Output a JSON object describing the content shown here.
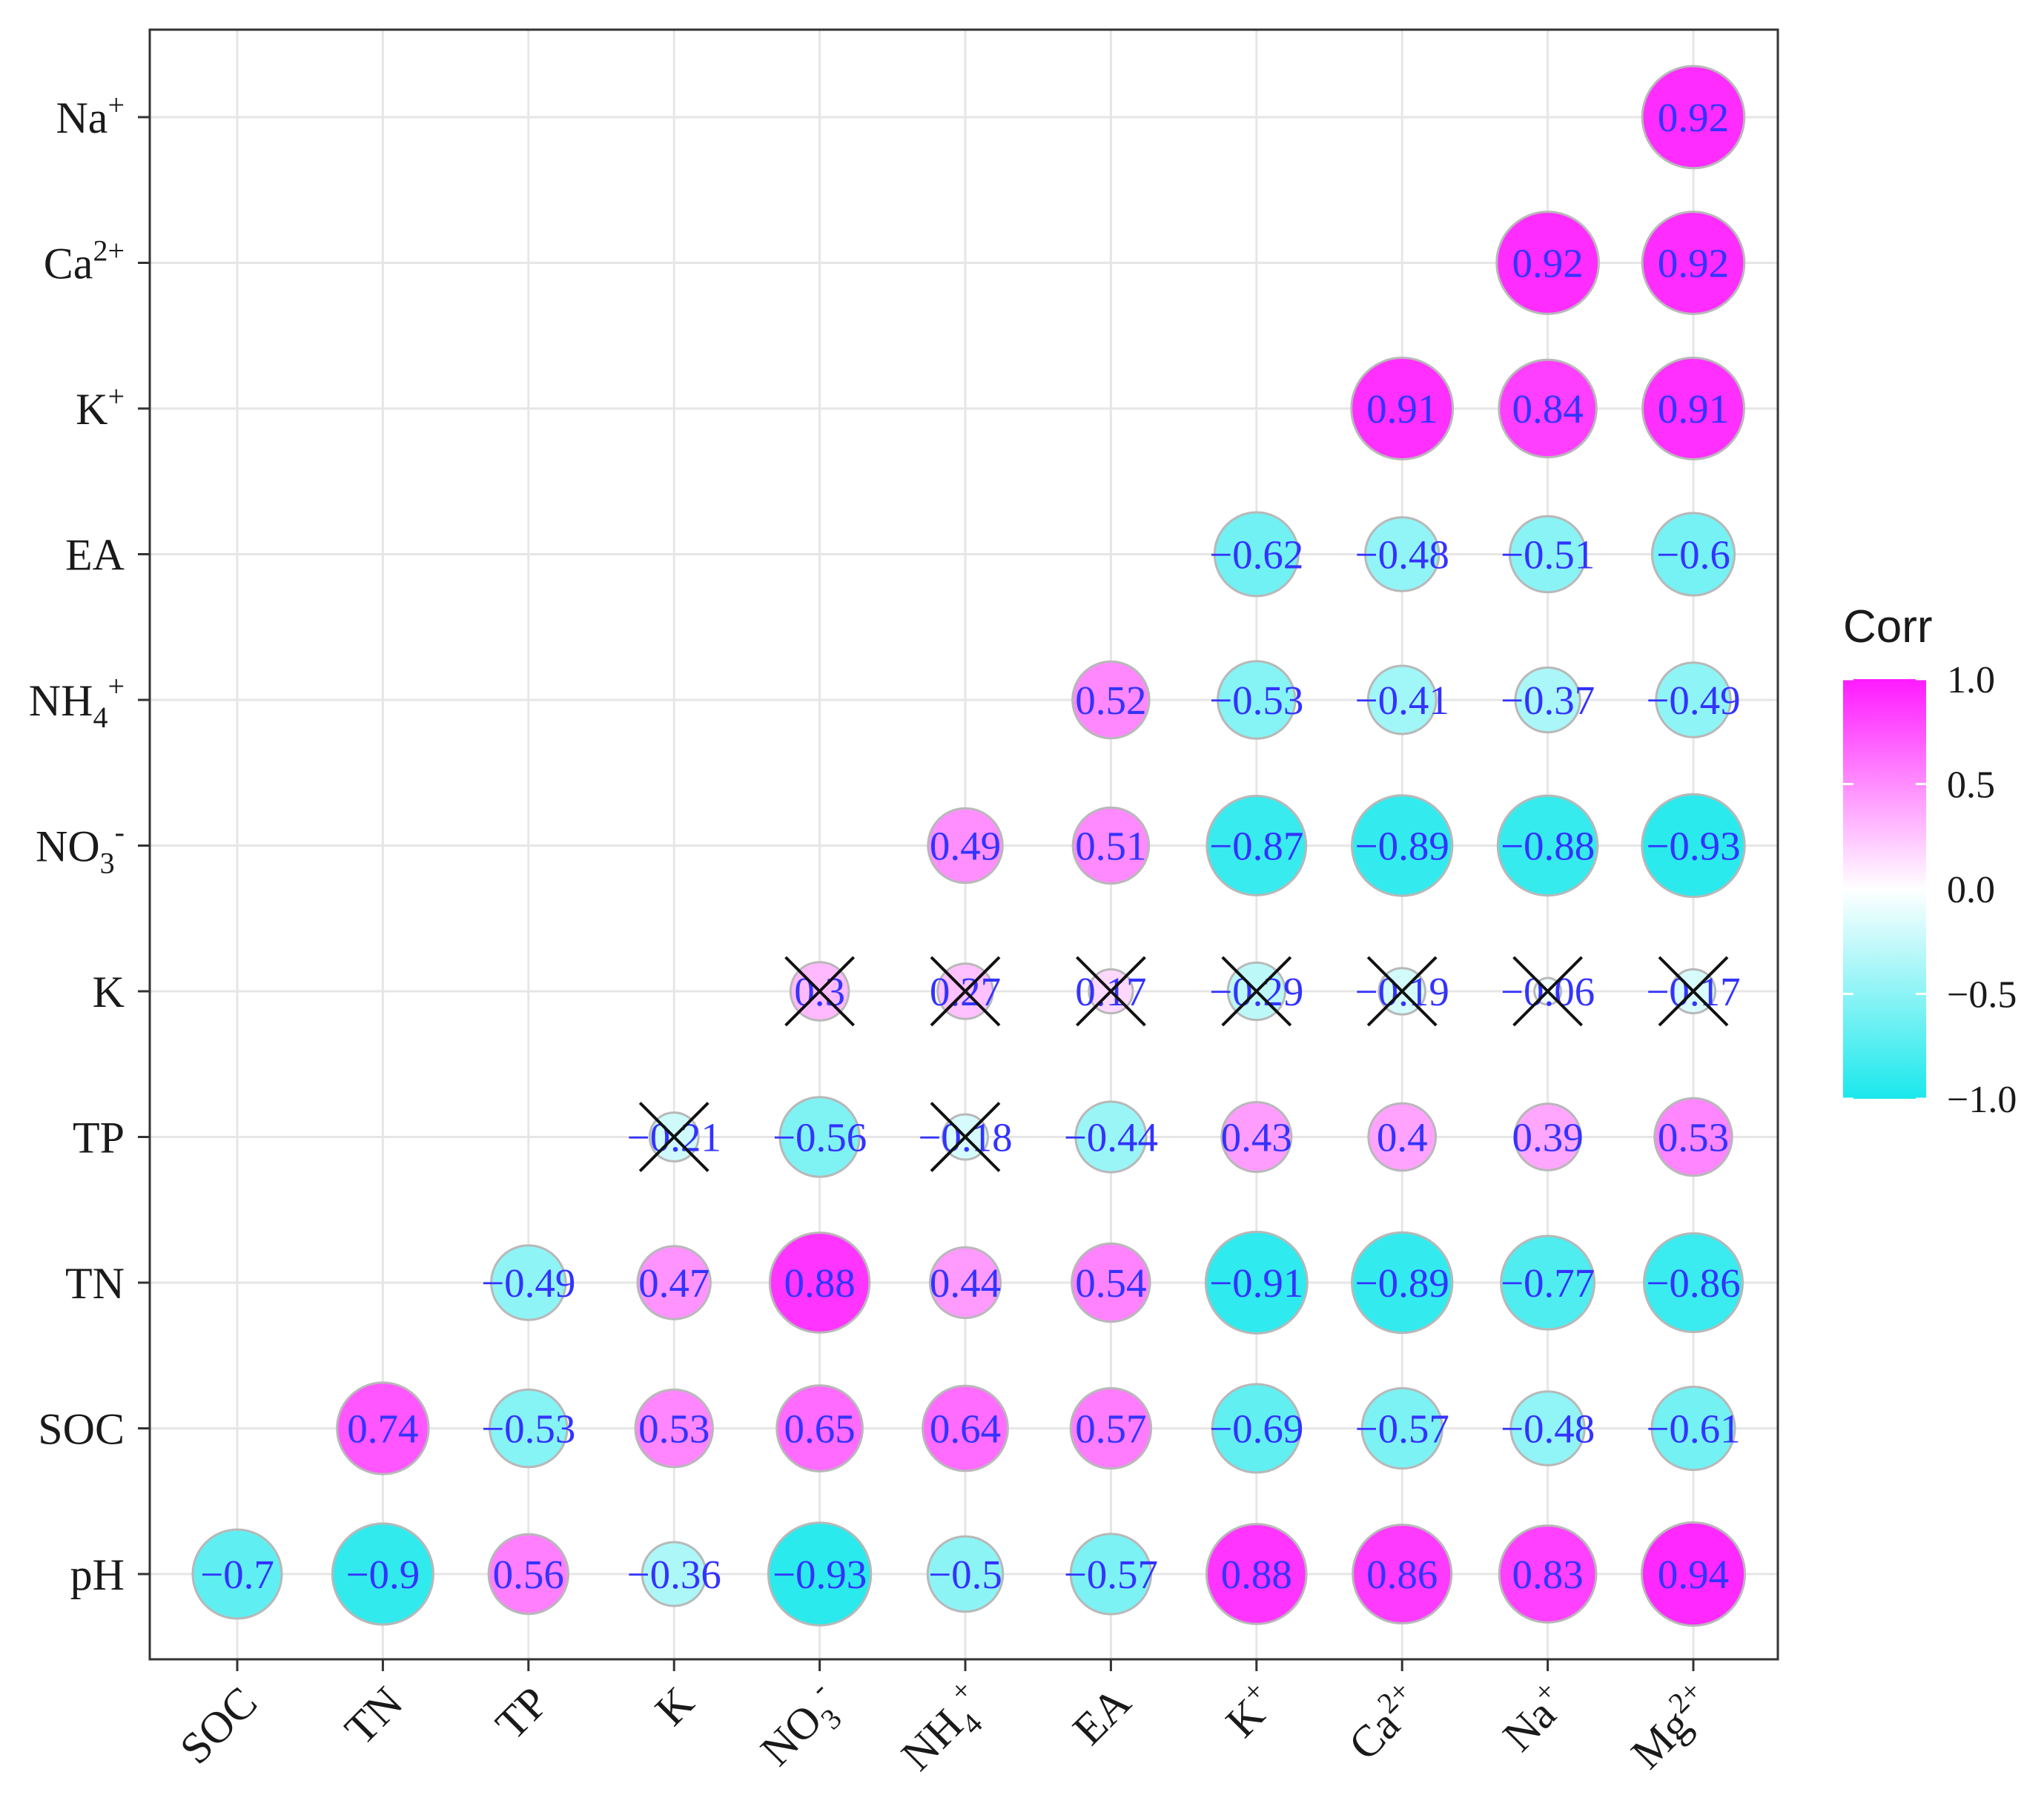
{
  "chart_data": {
    "type": "correlation-matrix",
    "variables": [
      "pH",
      "SOC",
      "TN",
      "TP",
      "K",
      "NO3-",
      "NH4+",
      "EA",
      "K+",
      "Ca2+",
      "Na+",
      "Mg2+"
    ],
    "x_labels": [
      {
        "base": "SOC",
        "sub": "",
        "sup": ""
      },
      {
        "base": "TN",
        "sub": "",
        "sup": ""
      },
      {
        "base": "TP",
        "sub": "",
        "sup": ""
      },
      {
        "base": "K",
        "sub": "",
        "sup": ""
      },
      {
        "base": "NO",
        "sub": "3",
        "sup": "-"
      },
      {
        "base": "NH",
        "sub": "4",
        "sup": "+"
      },
      {
        "base": "EA",
        "sub": "",
        "sup": ""
      },
      {
        "base": "K",
        "sub": "",
        "sup": "+"
      },
      {
        "base": "Ca",
        "sub": "",
        "sup": "2+"
      },
      {
        "base": "Na",
        "sub": "",
        "sup": "+"
      },
      {
        "base": "Mg",
        "sub": "",
        "sup": "2+"
      }
    ],
    "y_labels": [
      {
        "base": "pH",
        "sub": "",
        "sup": ""
      },
      {
        "base": "SOC",
        "sub": "",
        "sup": ""
      },
      {
        "base": "TN",
        "sub": "",
        "sup": ""
      },
      {
        "base": "TP",
        "sub": "",
        "sup": ""
      },
      {
        "base": "K",
        "sub": "",
        "sup": ""
      },
      {
        "base": "NO",
        "sub": "3",
        "sup": "-"
      },
      {
        "base": "NH",
        "sub": "4",
        "sup": "+"
      },
      {
        "base": "EA",
        "sub": "",
        "sup": ""
      },
      {
        "base": "K",
        "sub": "",
        "sup": "+"
      },
      {
        "base": "Ca",
        "sub": "",
        "sup": "2+"
      },
      {
        "base": "Na",
        "sub": "",
        "sup": "+"
      }
    ],
    "rows": [
      {
        "y": "pH",
        "values": [
          -0.7,
          -0.9,
          0.56,
          -0.36,
          -0.93,
          -0.5,
          -0.57,
          0.88,
          0.86,
          0.83,
          0.94
        ]
      },
      {
        "y": "SOC",
        "values": [
          null,
          0.74,
          -0.53,
          0.53,
          0.65,
          0.64,
          0.57,
          -0.69,
          -0.57,
          -0.48,
          -0.61
        ]
      },
      {
        "y": "TN",
        "values": [
          null,
          null,
          -0.49,
          0.47,
          0.88,
          0.44,
          0.54,
          -0.91,
          -0.89,
          -0.77,
          -0.86
        ]
      },
      {
        "y": "TP",
        "values": [
          null,
          null,
          null,
          -0.21,
          -0.56,
          -0.18,
          -0.44,
          0.43,
          0.4,
          0.39,
          0.53
        ]
      },
      {
        "y": "K",
        "values": [
          null,
          null,
          null,
          null,
          0.3,
          0.27,
          0.17,
          -0.29,
          -0.19,
          -0.06,
          -0.17
        ]
      },
      {
        "y": "NO3-",
        "values": [
          null,
          null,
          null,
          null,
          null,
          0.49,
          0.51,
          -0.87,
          -0.89,
          -0.88,
          -0.93
        ]
      },
      {
        "y": "NH4+",
        "values": [
          null,
          null,
          null,
          null,
          null,
          null,
          0.52,
          -0.53,
          -0.41,
          -0.37,
          -0.49
        ]
      },
      {
        "y": "EA",
        "values": [
          null,
          null,
          null,
          null,
          null,
          null,
          null,
          -0.62,
          -0.48,
          -0.51,
          -0.6
        ]
      },
      {
        "y": "K+",
        "values": [
          null,
          null,
          null,
          null,
          null,
          null,
          null,
          null,
          0.91,
          0.84,
          0.91
        ]
      },
      {
        "y": "Ca2+",
        "values": [
          null,
          null,
          null,
          null,
          null,
          null,
          null,
          null,
          null,
          0.92,
          0.92
        ]
      },
      {
        "y": "Na+",
        "values": [
          null,
          null,
          null,
          null,
          null,
          null,
          null,
          null,
          null,
          null,
          0.92
        ]
      }
    ],
    "insignificant": [
      [
        3,
        3
      ],
      [
        3,
        5
      ],
      [
        4,
        4
      ],
      [
        4,
        5
      ],
      [
        4,
        6
      ],
      [
        4,
        7
      ],
      [
        4,
        8
      ],
      [
        4,
        9
      ],
      [
        4,
        10
      ]
    ],
    "legend": {
      "title": "Corr",
      "ticks": [
        "1.0",
        "0.5",
        "0.0",
        "−0.5",
        "−1.0"
      ],
      "tick_values": [
        1.0,
        0.5,
        0.0,
        -0.5,
        -1.0
      ],
      "range": [
        -1.0,
        1.0
      ],
      "position": "right"
    },
    "colors": {
      "positive": "#ff1aff",
      "zero": "#ffffff",
      "negative": "#1ae8ec",
      "value_text": "#3333ff",
      "grid": "#e6e6e6",
      "circle_border": "#b8b8b8"
    }
  }
}
